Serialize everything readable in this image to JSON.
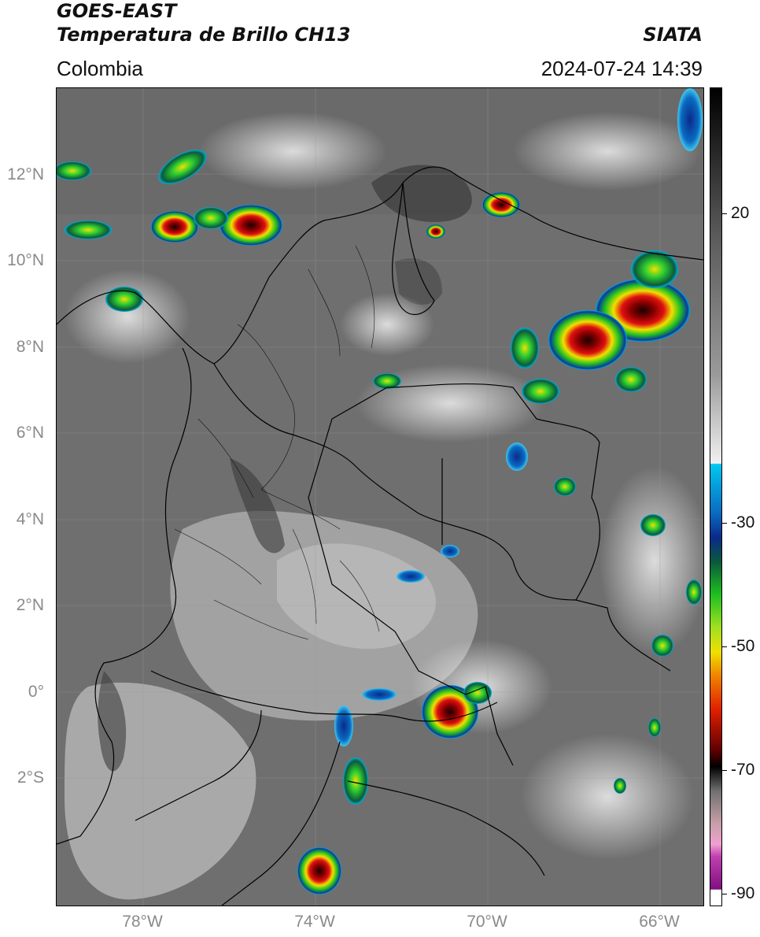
{
  "header": {
    "satellite": "GOES-EAST",
    "product": "Temperatura de Brillo CH13",
    "organization": "SIATA",
    "region": "Colombia",
    "timestamp": "2024-07-24 14:39"
  },
  "map": {
    "lat_labels": [
      "12°N",
      "10°N",
      "8°N",
      "6°N",
      "4°N",
      "2°N",
      "0°",
      "2°S"
    ],
    "lon_labels": [
      "78°W",
      "74°W",
      "70°W",
      "66°W"
    ],
    "gridlines": true,
    "colors": {
      "background_gray": "#6f6f6f",
      "land_light": "#b8b8b8",
      "cold_cloud_green": "#2fd12f",
      "cold_cloud_red": "#d41010",
      "cold_cloud_black": "#1a0000",
      "cold_cloud_blue": "#0a3a9a",
      "boundary": "#000000"
    }
  },
  "colorbar": {
    "tick_labels": [
      "20",
      "-30",
      "-50",
      "-70",
      "-90"
    ],
    "colors": [
      "#000000",
      "#5a5a5a",
      "#9a9a9a",
      "#e8e8e8",
      "#00b0e0",
      "#0a2a8a",
      "#20c020",
      "#f0e000",
      "#e02000",
      "#300000",
      "#f0b0c8",
      "#8a1a8a",
      "#ffffff"
    ]
  }
}
